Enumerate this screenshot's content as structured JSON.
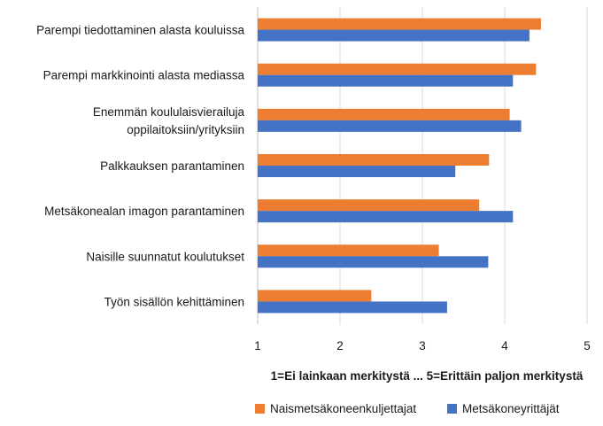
{
  "chart_data": {
    "type": "bar",
    "orientation": "horizontal",
    "categories": [
      "Parempi tiedottaminen alasta kouluissa",
      "Parempi markkinointi alasta mediassa",
      "Enemmän koululaisvierailuja oppilaitoksiin/yrityksiin",
      "Palkkauksen parantaminen",
      "Metsäkonealan imagon parantaminen",
      "Naisille suunnatut koulutukset",
      "Työn sisällön kehittäminen"
    ],
    "category_label_lines": [
      [
        "Parempi tiedottaminen alasta kouluissa"
      ],
      [
        "Parempi markkinointi alasta mediassa"
      ],
      [
        "Enemmän koululaisvierailuja",
        "oppilaitoksiin/yrityksiin"
      ],
      [
        "Palkkauksen parantaminen"
      ],
      [
        "Metsäkonealan imagon parantaminen"
      ],
      [
        "Naisille suunnatut koulutukset"
      ],
      [
        "Työn sisällön kehittäminen"
      ]
    ],
    "series": [
      {
        "name": "Naismetsäkoneenkuljettajat",
        "color": "#ED7D31",
        "values": [
          4.44,
          4.38,
          4.06,
          3.81,
          3.69,
          3.2,
          2.38
        ]
      },
      {
        "name": "Metsäkoneyrittäjät",
        "color": "#4472C4",
        "values": [
          4.3,
          4.1,
          4.2,
          3.4,
          4.1,
          3.8,
          3.3
        ]
      }
    ],
    "xlim": [
      1,
      5
    ],
    "xticks": [
      "1",
      "2",
      "3",
      "4",
      "5"
    ],
    "xlabel": "1=Ei lainkaan merkitystä ... 5=Erittäin paljon merkitystä",
    "grid": true,
    "legend_position": "bottom"
  }
}
